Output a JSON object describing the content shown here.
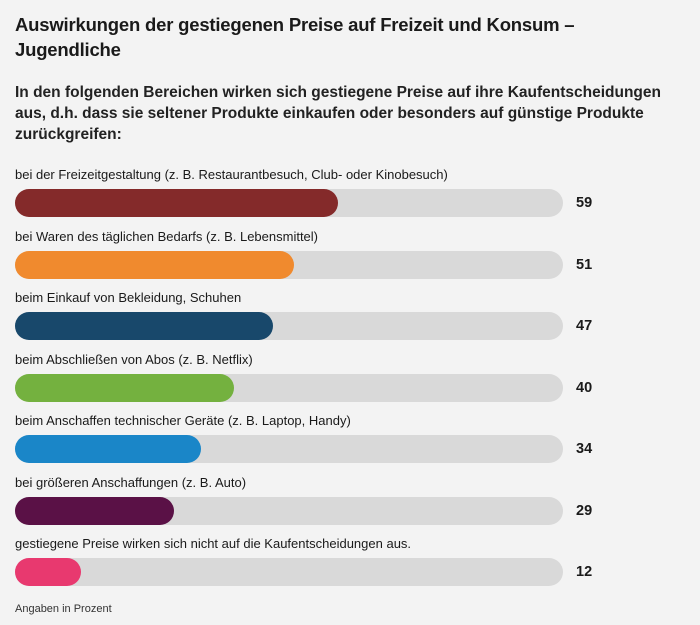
{
  "title": "Auswirkungen der gestiegenen Preise auf Freizeit und Konsum – Jugendliche",
  "subtitle": "In den folgenden Bereichen wirken sich gestiegene Preise auf ihre Kaufentscheidungen aus, d.h. dass sie seltener Produkte einkaufen oder besonders auf günstige Produkte zurückgreifen:",
  "footnote": "Angaben in Prozent",
  "chart_data": {
    "type": "bar",
    "orientation": "horizontal",
    "title": "Auswirkungen der gestiegenen Preise auf Freizeit und Konsum – Jugendliche",
    "subtitle": "In den folgenden Bereichen wirken sich gestiegene Preise auf ihre Kaufentscheidungen aus, d.h. dass sie seltener Produkte einkaufen oder besonders auf günstige Produkte zurückgreifen:",
    "unit": "Angaben in Prozent",
    "xlim": [
      0,
      100
    ],
    "grid": false,
    "categories": [
      "bei der Freizeitgestaltung (z. B. Restaurantbesuch, Club- oder Kinobesuch)",
      "bei Waren des täglichen Bedarfs (z. B. Lebensmittel)",
      "beim Einkauf von Bekleidung, Schuhen",
      "beim Abschließen von Abos (z. B. Netflix)",
      "beim Anschaffen technischer Geräte (z. B. Laptop, Handy)",
      "bei größeren Anschaffungen (z. B. Auto)",
      "gestiegene Preise wirken sich nicht auf die Kaufentscheidungen aus."
    ],
    "values": [
      59,
      51,
      47,
      40,
      34,
      29,
      12
    ],
    "colors": [
      "#842a2a",
      "#f08a2e",
      "#18486b",
      "#74b13f",
      "#1a86c8",
      "#5a1146",
      "#e8396f"
    ],
    "track_color": "#d9d9d9"
  }
}
